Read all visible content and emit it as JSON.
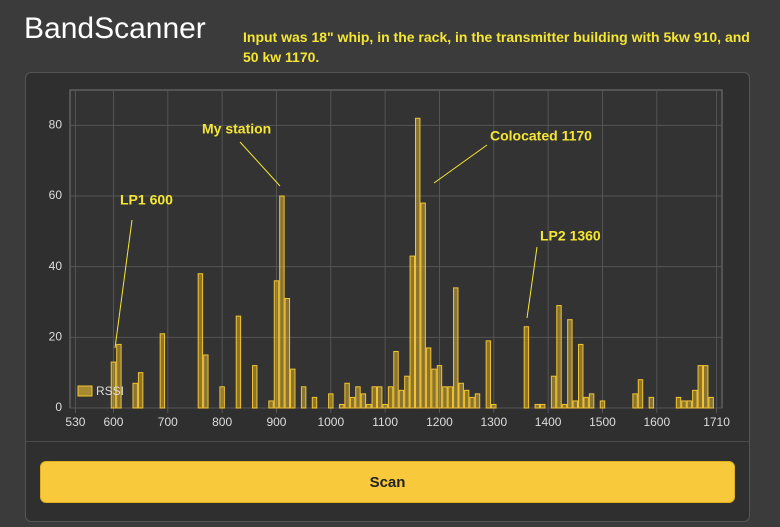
{
  "header": {
    "title": "BandScanner",
    "note": "Input was 18\" whip, in the rack, in the transmitter building with 5kw 910, and 50 kw 1170."
  },
  "chart_data": {
    "type": "bar",
    "x": [
      600,
      610,
      640,
      650,
      690,
      760,
      770,
      800,
      830,
      860,
      890,
      900,
      910,
      920,
      930,
      950,
      970,
      1000,
      1020,
      1030,
      1040,
      1050,
      1060,
      1070,
      1080,
      1090,
      1100,
      1110,
      1120,
      1130,
      1140,
      1150,
      1160,
      1170,
      1180,
      1190,
      1200,
      1210,
      1220,
      1230,
      1240,
      1250,
      1260,
      1270,
      1290,
      1300,
      1360,
      1380,
      1390,
      1410,
      1420,
      1430,
      1440,
      1450,
      1460,
      1470,
      1480,
      1500,
      1560,
      1570,
      1590,
      1640,
      1650,
      1660,
      1670,
      1680,
      1690,
      1700
    ],
    "series": [
      {
        "name": "RSSI",
        "color": "#f4c430",
        "values": [
          13,
          18,
          7,
          10,
          21,
          38,
          15,
          6,
          26,
          12,
          2,
          36,
          60,
          31,
          11,
          6,
          3,
          4,
          1,
          7,
          3,
          6,
          4,
          1,
          6,
          6,
          1,
          6,
          16,
          5,
          9,
          43,
          82,
          58,
          17,
          11,
          12,
          6,
          6,
          34,
          7,
          5,
          3,
          4,
          19,
          1,
          23,
          1,
          1,
          9,
          29,
          1,
          25,
          2,
          18,
          3,
          4,
          2,
          4,
          8,
          3,
          3,
          2,
          2,
          5,
          12,
          12,
          3
        ]
      }
    ],
    "xlim": [
      520,
      1720
    ],
    "xticks": [
      530,
      600,
      700,
      800,
      900,
      1000,
      1100,
      1200,
      1300,
      1400,
      1500,
      1600,
      1710
    ],
    "ylim": [
      0,
      90
    ],
    "yticks": [
      0,
      20,
      40,
      60,
      80
    ],
    "grid": true,
    "legend": "bottom-left",
    "annotations": [
      "LP1 600",
      "My station",
      "Colocated 1170",
      "LP2 1360"
    ]
  },
  "button": {
    "label": "Scan"
  }
}
